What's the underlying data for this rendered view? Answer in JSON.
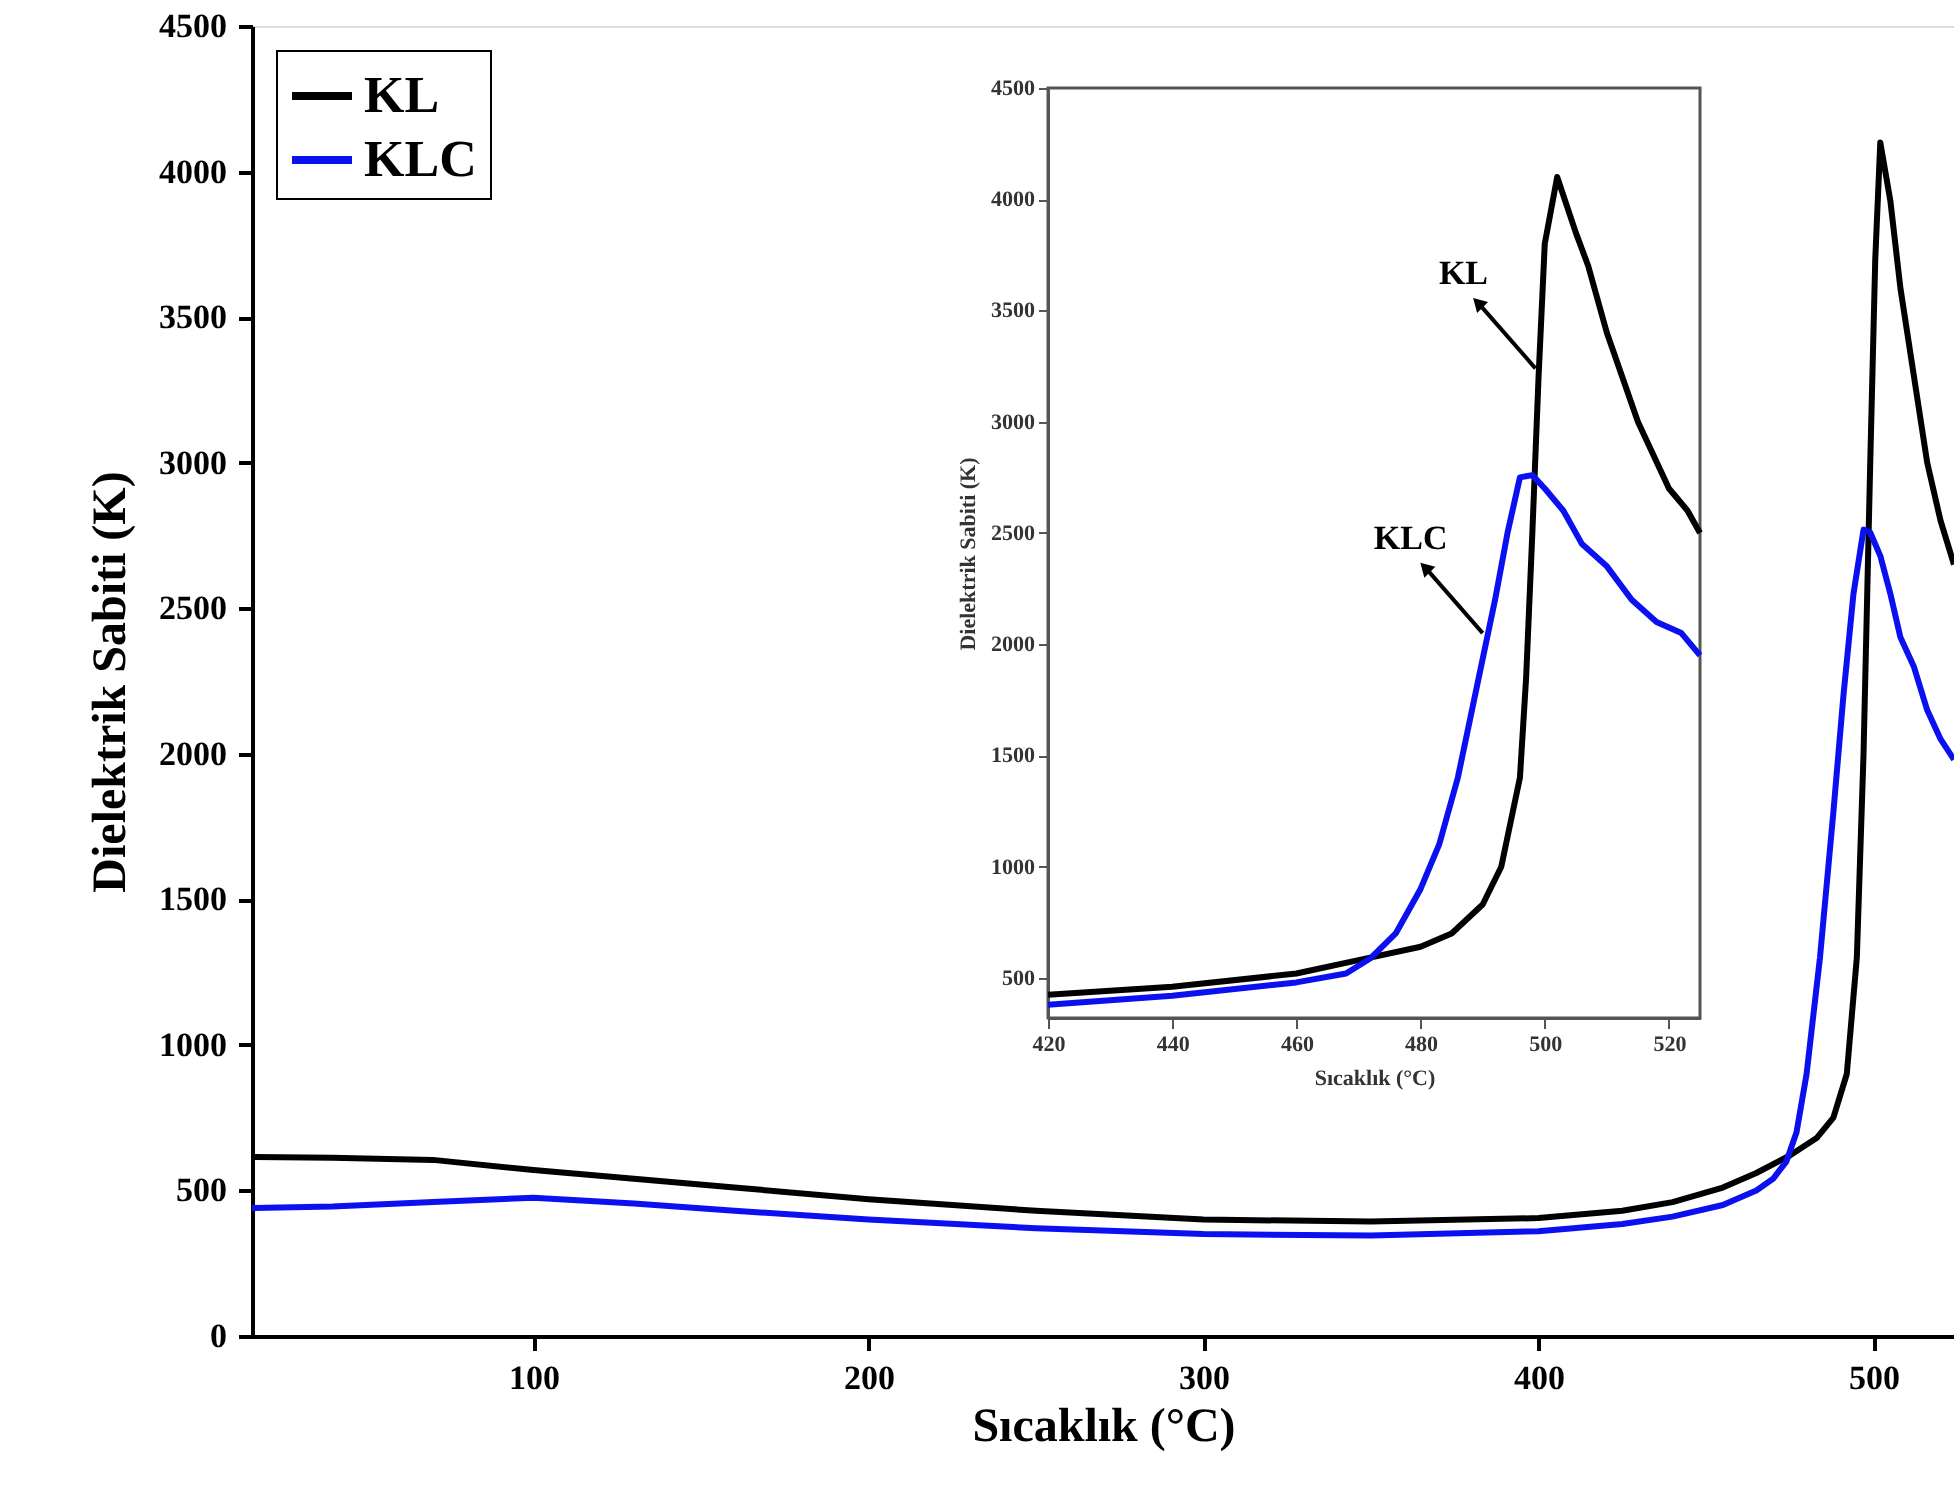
{
  "chart_data": [
    {
      "type": "line",
      "xlabel": "Sıcaklık (°C)",
      "ylabel": "Dielektrik Sabiti (K)",
      "xlim": [
        16,
        524
      ],
      "ylim": [
        0,
        4500
      ],
      "xticks": [
        100,
        200,
        300,
        400,
        500
      ],
      "yticks": [
        0,
        500,
        1000,
        1500,
        2000,
        2500,
        3000,
        3500,
        4000,
        4500
      ],
      "legend": "top left",
      "grid": false,
      "x": [
        16,
        40,
        70,
        100,
        130,
        160,
        200,
        250,
        300,
        350,
        400,
        425,
        440,
        455,
        465,
        475,
        483,
        488,
        492,
        495,
        497,
        499,
        500.5,
        502,
        505,
        508,
        512,
        516,
        520,
        524
      ],
      "series": [
        {
          "name": "KL",
          "color": "#000000",
          "values": [
            615,
            612,
            605,
            570,
            540,
            510,
            470,
            430,
            400,
            393,
            405,
            430,
            460,
            510,
            560,
            620,
            680,
            750,
            900,
            1300,
            2000,
            3000,
            3700,
            4100,
            3900,
            3600,
            3300,
            3000,
            2800,
            2650
          ]
        },
        {
          "name": "KLC",
          "color": "#0a10f0",
          "x": [
            16,
            40,
            70,
            100,
            130,
            160,
            200,
            250,
            300,
            350,
            400,
            425,
            440,
            455,
            465,
            470,
            474,
            477,
            480,
            484,
            488,
            491,
            494,
            497,
            499,
            502,
            505,
            508,
            512,
            516,
            520,
            524
          ],
          "values": [
            440,
            445,
            460,
            475,
            455,
            430,
            400,
            370,
            350,
            345,
            360,
            385,
            410,
            450,
            500,
            540,
            600,
            700,
            900,
            1300,
            1800,
            2200,
            2550,
            2770,
            2760,
            2680,
            2550,
            2400,
            2300,
            2150,
            2050,
            1980
          ]
        }
      ]
    },
    {
      "type": "line",
      "xlabel": "Sıcaklık (°C)",
      "ylabel": "Dielektrik Sabiti (K)",
      "xlim": [
        420,
        525
      ],
      "ylim": [
        320,
        4500
      ],
      "xticks": [
        420,
        440,
        460,
        480,
        500,
        520
      ],
      "yticks": [
        500,
        1000,
        1500,
        2000,
        2500,
        3000,
        3500,
        4000,
        4500
      ],
      "grid": false,
      "annotations": [
        {
          "text": "KL",
          "x": 498.5,
          "y": 3240
        },
        {
          "text": "KLC",
          "x": 490,
          "y": 2050
        }
      ],
      "series": [
        {
          "color": "#000000",
          "x": [
            420,
            440,
            460,
            470,
            480,
            485,
            490,
            493,
            496,
            497,
            498,
            499,
            500,
            502,
            505,
            507,
            510,
            515,
            520,
            523,
            525
          ],
          "values": [
            425,
            460,
            520,
            580,
            640,
            700,
            830,
            1000,
            1400,
            1850,
            2500,
            3200,
            3800,
            4100,
            3850,
            3700,
            3400,
            3000,
            2700,
            2600,
            2500
          ]
        },
        {
          "color": "#0a10f0",
          "x": [
            420,
            440,
            460,
            468,
            472,
            476,
            480,
            483,
            486,
            489,
            492,
            494,
            496,
            498,
            500,
            503,
            506,
            510,
            514,
            518,
            522,
            525
          ],
          "values": [
            380,
            420,
            480,
            520,
            590,
            700,
            900,
            1100,
            1400,
            1800,
            2200,
            2500,
            2750,
            2760,
            2700,
            2600,
            2450,
            2350,
            2200,
            2100,
            2050,
            1950
          ]
        }
      ]
    }
  ]
}
